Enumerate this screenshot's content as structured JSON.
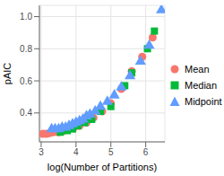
{
  "chart_data": {
    "type": "scatter",
    "x_label": "log(Number of Partitions)",
    "y_label": "pAIC",
    "xlim": [
      2.95,
      6.55
    ],
    "ylim": [
      0.22,
      1.07
    ],
    "xticks": [
      3,
      4,
      5,
      6
    ],
    "yticks": [
      {
        "value": 0.4,
        "label": "0.4"
      },
      {
        "value": 0.6,
        "label": "0.6"
      },
      {
        "value": 0.8,
        "label": "0.8"
      },
      {
        "value": 1,
        "label": "1.0"
      }
    ],
    "grid": true,
    "legend": "right",
    "series": [
      {
        "name": "Mean",
        "color": "#F8766D",
        "marker": "circle",
        "x": [
          3.05,
          3.15,
          3.25,
          3.35,
          3.5,
          3.65,
          3.8,
          3.95,
          4.1,
          4.3,
          4.5,
          4.75,
          5.0,
          5.3,
          5.6,
          5.9,
          6.2
        ],
        "values": [
          0.27,
          0.27,
          0.275,
          0.28,
          0.28,
          0.29,
          0.3,
          0.31,
          0.32,
          0.34,
          0.37,
          0.41,
          0.46,
          0.55,
          0.66,
          0.75,
          0.87
        ]
      },
      {
        "name": "Median",
        "color": "#00BA38",
        "marker": "square",
        "x": [
          3.55,
          3.75,
          3.9,
          4.05,
          4.25,
          4.45,
          4.7,
          5.0,
          5.4,
          5.6,
          6.05,
          6.25
        ],
        "values": [
          0.28,
          0.29,
          0.3,
          0.32,
          0.34,
          0.36,
          0.41,
          0.44,
          0.57,
          0.65,
          0.8,
          0.91
        ]
      },
      {
        "name": "Midpoint",
        "color": "#619CFF",
        "marker": "triangle",
        "x": [
          3.3,
          3.4,
          3.5,
          3.6,
          3.7,
          3.8,
          3.9,
          4.0,
          4.1,
          4.2,
          4.3,
          4.4,
          4.55,
          4.7,
          4.9,
          5.1,
          5.3,
          5.55,
          5.85,
          6.1,
          6.45
        ],
        "values": [
          0.3,
          0.3,
          0.3,
          0.31,
          0.31,
          0.32,
          0.33,
          0.34,
          0.35,
          0.36,
          0.38,
          0.39,
          0.41,
          0.44,
          0.47,
          0.51,
          0.56,
          0.63,
          0.72,
          0.82,
          1.04
        ]
      }
    ]
  }
}
